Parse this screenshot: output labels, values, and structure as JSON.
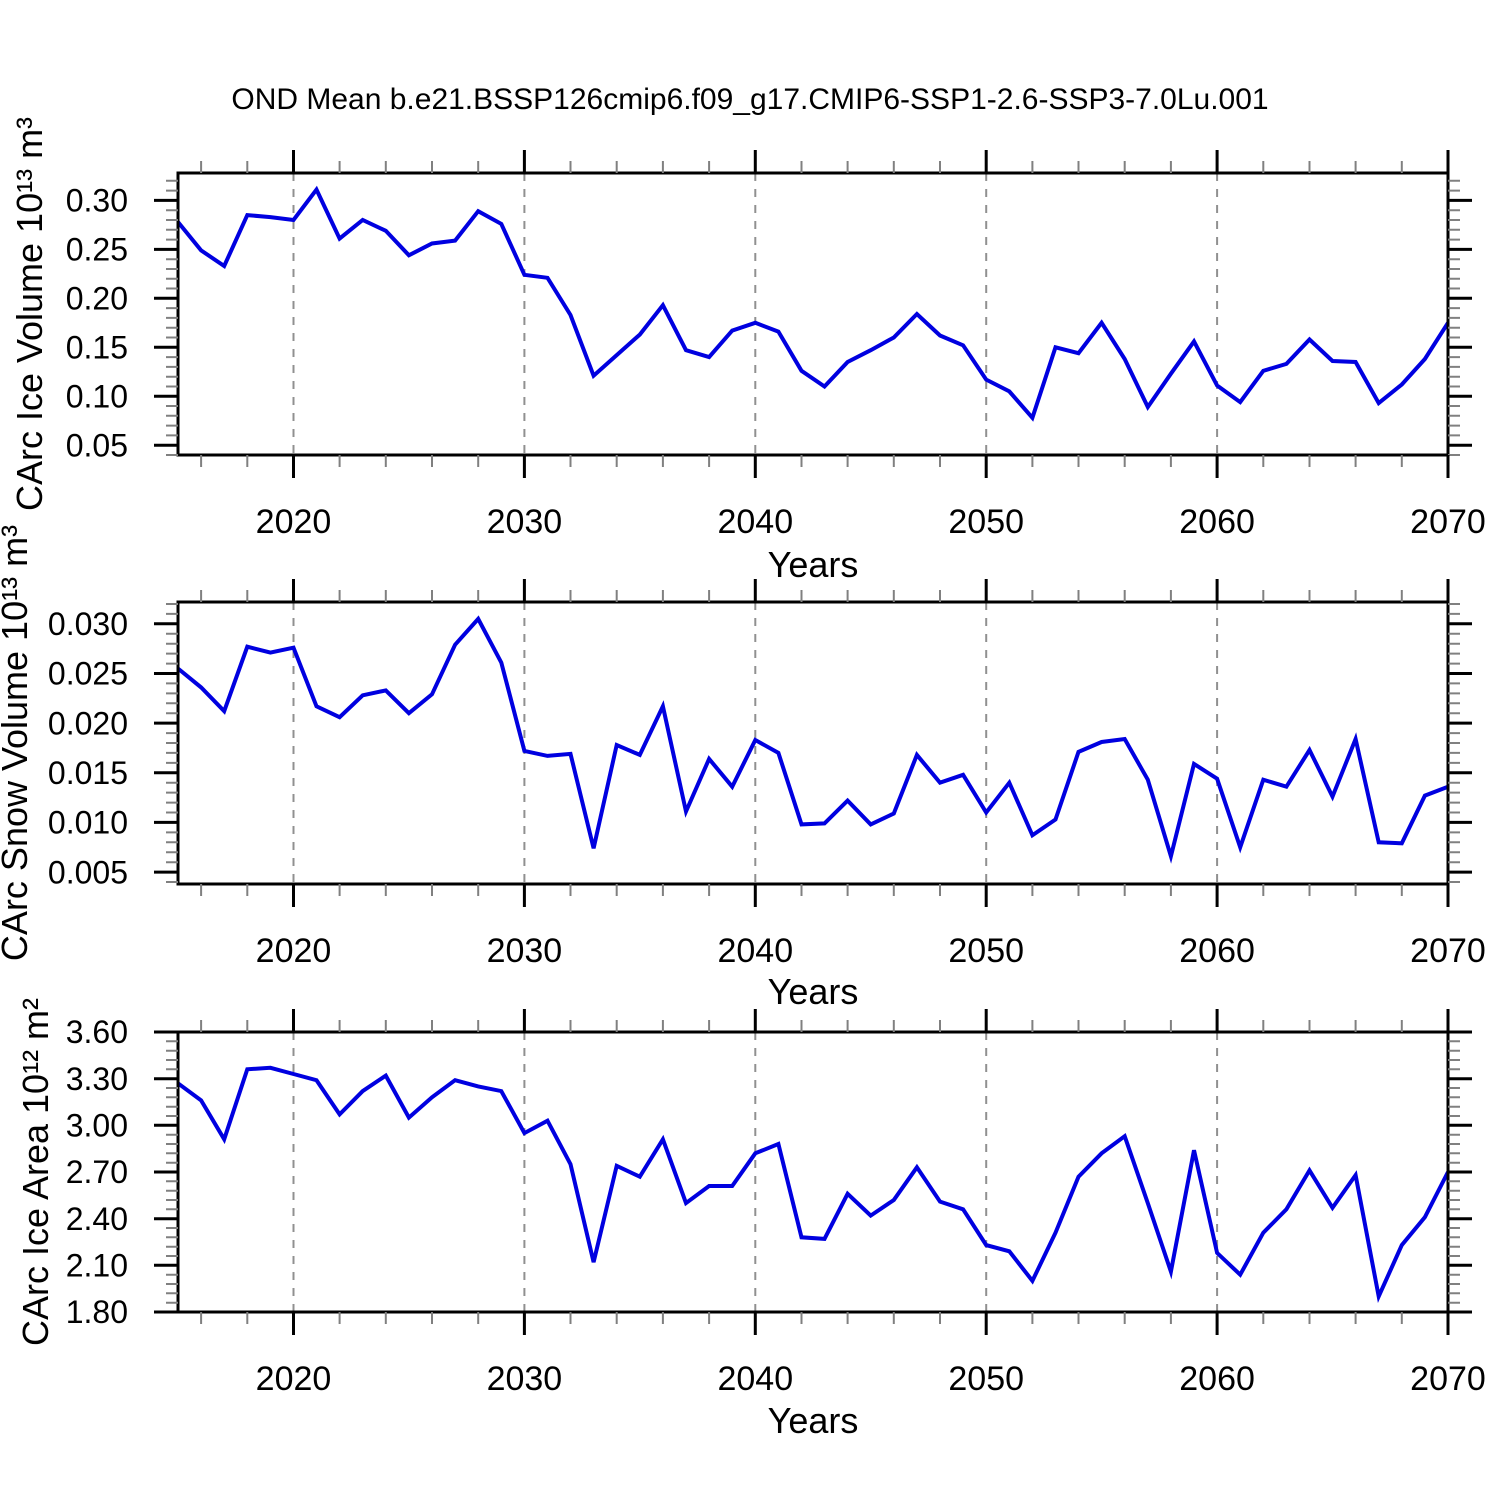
{
  "chart_data": {
    "type": "line",
    "title": "OND Mean b.e21.BSSP126cmip6.f09_g17.CMIP6-SSP1-2.6-SSP3-7.0Lu.001",
    "legend": "none",
    "grid": "vertical-dashed-at-decades",
    "colors": {
      "line": "#0000e0",
      "grid_dash": "#909090",
      "axis": "#000000",
      "minor_tick": "#808080",
      "background": "#ffffff",
      "text": "#000000"
    },
    "years": [
      2015,
      2016,
      2017,
      2018,
      2019,
      2020,
      2021,
      2022,
      2023,
      2024,
      2025,
      2026,
      2027,
      2028,
      2029,
      2030,
      2031,
      2032,
      2033,
      2034,
      2035,
      2036,
      2037,
      2038,
      2039,
      2040,
      2041,
      2042,
      2043,
      2044,
      2045,
      2046,
      2047,
      2048,
      2049,
      2050,
      2051,
      2052,
      2053,
      2054,
      2055,
      2056,
      2057,
      2058,
      2059,
      2060,
      2061,
      2062,
      2063,
      2064,
      2065,
      2066,
      2067,
      2068,
      2069,
      2070
    ],
    "xlim": [
      2015,
      2070
    ],
    "x_major_ticks": [
      2020,
      2030,
      2040,
      2050,
      2060,
      2070
    ],
    "x_major_tick_labels": [
      "2020",
      "2030",
      "2040",
      "2050",
      "2060",
      "2070"
    ],
    "x_minor_tick_step_years": 2,
    "grid_years": [
      2020,
      2030,
      2040,
      2050,
      2060
    ],
    "panels": [
      {
        "name": "ice-volume",
        "ylabel": "CArc Ice Volume 10¹³ m³",
        "xlabel": "Years",
        "ylim": [
          0.04,
          0.328
        ],
        "y_ticks": [
          0.3,
          0.25,
          0.2,
          0.15,
          0.1,
          0.05
        ],
        "y_tick_labels": [
          "0.30",
          "0.25",
          "0.20",
          "0.15",
          "0.10",
          "0.05"
        ],
        "y_minor_step": 0.01,
        "values": [
          0.278,
          0.249,
          0.233,
          0.285,
          0.283,
          0.28,
          0.311,
          0.261,
          0.28,
          0.269,
          0.244,
          0.256,
          0.259,
          0.289,
          0.276,
          0.224,
          0.221,
          0.183,
          0.121,
          0.142,
          0.163,
          0.193,
          0.147,
          0.14,
          0.167,
          0.175,
          0.166,
          0.126,
          0.11,
          0.135,
          0.147,
          0.16,
          0.184,
          0.162,
          0.152,
          0.117,
          0.105,
          0.078,
          0.15,
          0.144,
          0.175,
          0.138,
          0.089,
          0.123,
          0.156,
          0.111,
          0.094,
          0.126,
          0.133,
          0.158,
          0.136,
          0.135,
          0.093,
          0.112,
          0.138,
          0.175
        ]
      },
      {
        "name": "snow-volume",
        "ylabel": "CArc Snow Volume 10¹³ m³",
        "xlabel": "Years",
        "ylim": [
          0.0038,
          0.0322
        ],
        "y_ticks": [
          0.03,
          0.025,
          0.02,
          0.015,
          0.01,
          0.005
        ],
        "y_tick_labels": [
          "0.030",
          "0.025",
          "0.020",
          "0.015",
          "0.010",
          "0.005"
        ],
        "y_minor_step": 0.001,
        "values": [
          0.0255,
          0.0236,
          0.0212,
          0.0277,
          0.0271,
          0.0276,
          0.0217,
          0.0206,
          0.0228,
          0.0233,
          0.021,
          0.0229,
          0.0279,
          0.0305,
          0.0261,
          0.0172,
          0.0167,
          0.0169,
          0.0074,
          0.0178,
          0.0168,
          0.0217,
          0.0111,
          0.0164,
          0.0136,
          0.0183,
          0.017,
          0.0098,
          0.0099,
          0.0122,
          0.0098,
          0.0109,
          0.0168,
          0.014,
          0.0148,
          0.011,
          0.014,
          0.0087,
          0.0103,
          0.0171,
          0.0181,
          0.0184,
          0.0143,
          0.0066,
          0.0159,
          0.0144,
          0.0075,
          0.0143,
          0.0136,
          0.0173,
          0.0126,
          0.0184,
          0.008,
          0.0079,
          0.0127,
          0.0136
        ]
      },
      {
        "name": "ice-area",
        "ylabel": "CArc Ice Area 10¹² m²",
        "xlabel": "Years",
        "ylim": [
          1.8,
          3.6
        ],
        "y_ticks": [
          3.6,
          3.3,
          3.0,
          2.7,
          2.4,
          2.1,
          1.8
        ],
        "y_tick_labels": [
          "3.60",
          "3.30",
          "3.00",
          "2.70",
          "2.40",
          "2.10",
          "1.80"
        ],
        "y_minor_step": 0.06,
        "values": [
          3.27,
          3.16,
          2.91,
          3.36,
          3.37,
          3.33,
          3.29,
          3.07,
          3.22,
          3.32,
          3.05,
          3.18,
          3.29,
          3.25,
          3.22,
          2.95,
          3.03,
          2.75,
          2.12,
          2.74,
          2.67,
          2.91,
          2.5,
          2.61,
          2.61,
          2.82,
          2.88,
          2.28,
          2.27,
          2.56,
          2.42,
          2.52,
          2.73,
          2.51,
          2.46,
          2.23,
          2.19,
          2.0,
          2.31,
          2.67,
          2.82,
          2.93,
          2.5,
          2.06,
          2.84,
          2.18,
          2.04,
          2.31,
          2.46,
          2.71,
          2.47,
          2.68,
          1.9,
          2.23,
          2.41,
          2.7
        ]
      }
    ]
  }
}
